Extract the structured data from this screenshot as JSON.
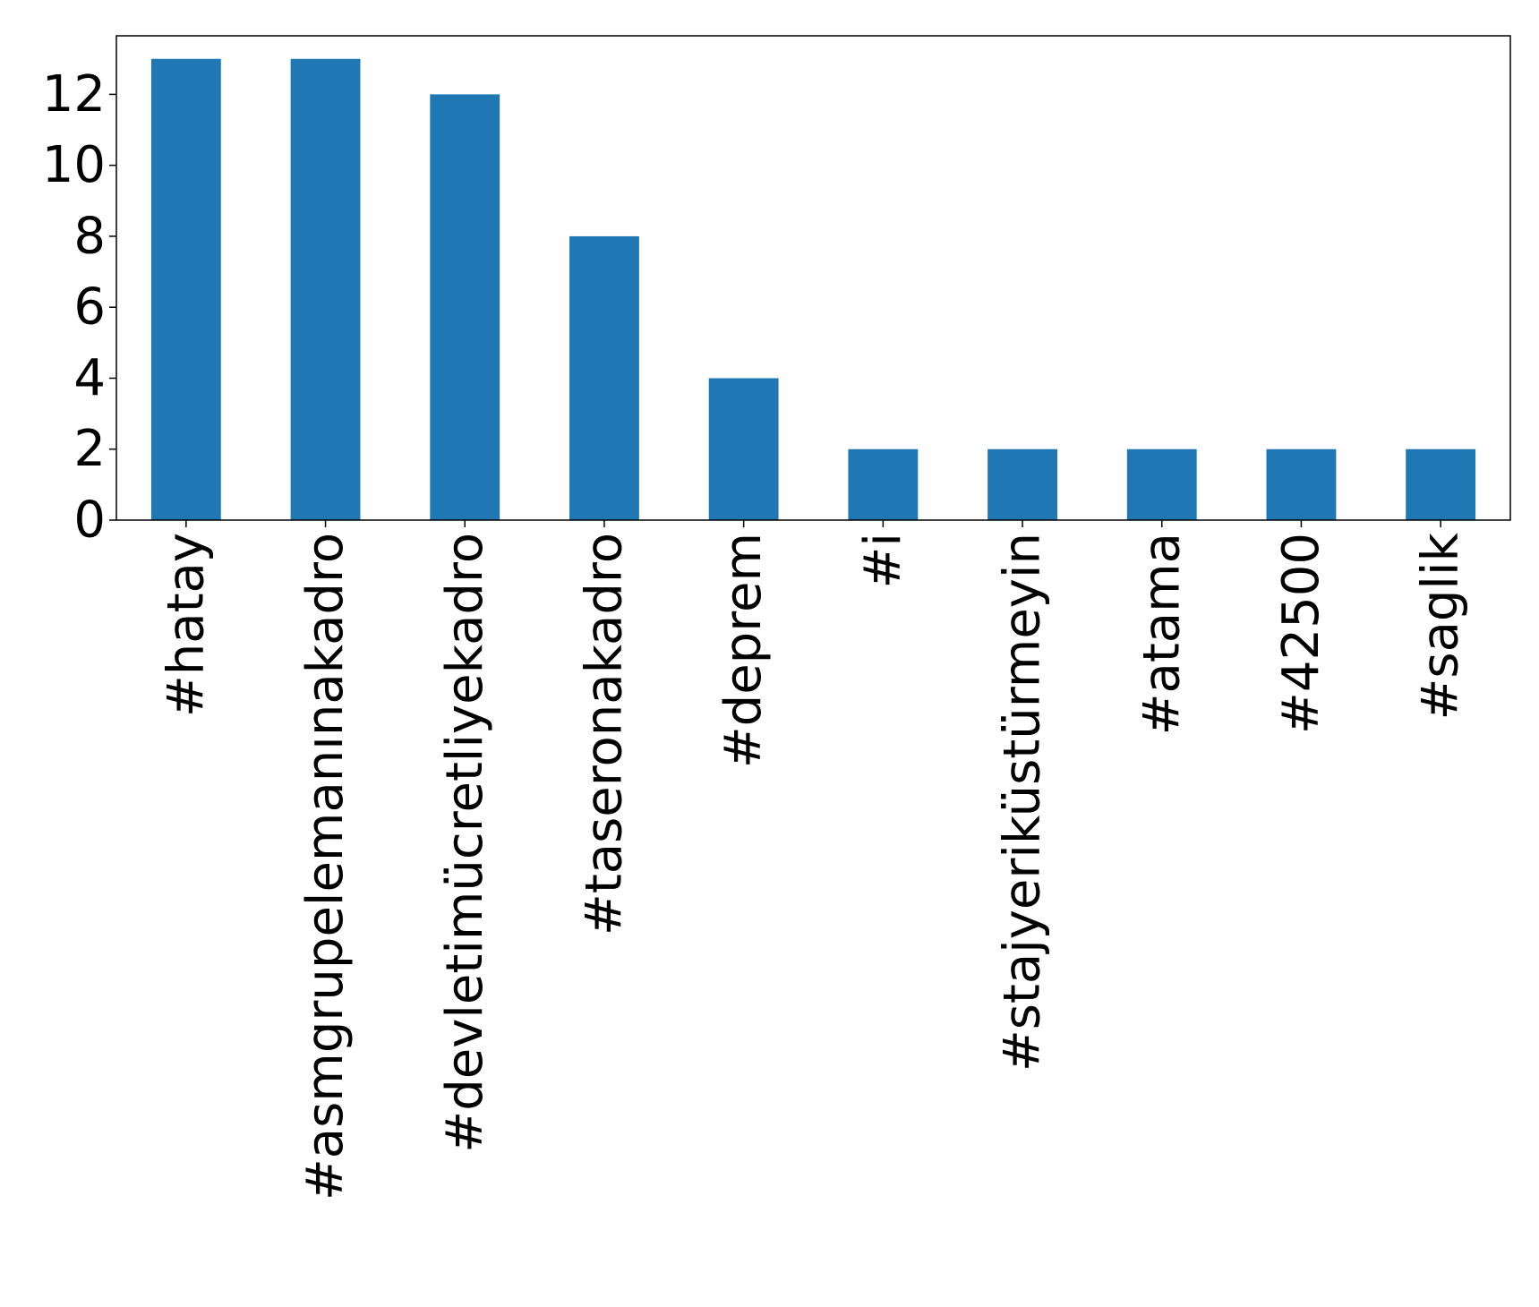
{
  "chart_data": {
    "type": "bar",
    "categories": [
      "#hatay",
      "#asmgrupelemanınakadro",
      "#devletimücretliyekadro",
      "#taseronakadro",
      "#deprem",
      "#i",
      "#stajyeriküstürmeyin",
      "#atama",
      "#42500",
      "#saglik"
    ],
    "values": [
      13,
      13,
      12,
      8,
      4,
      2,
      2,
      2,
      2,
      2
    ],
    "title": "",
    "xlabel": "",
    "ylabel": "",
    "ylim": [
      0,
      13.65
    ],
    "yticks": [
      0,
      2,
      4,
      6,
      8,
      10,
      12
    ],
    "grid": false,
    "legend": "none",
    "bar_color": "#1f77b4"
  }
}
